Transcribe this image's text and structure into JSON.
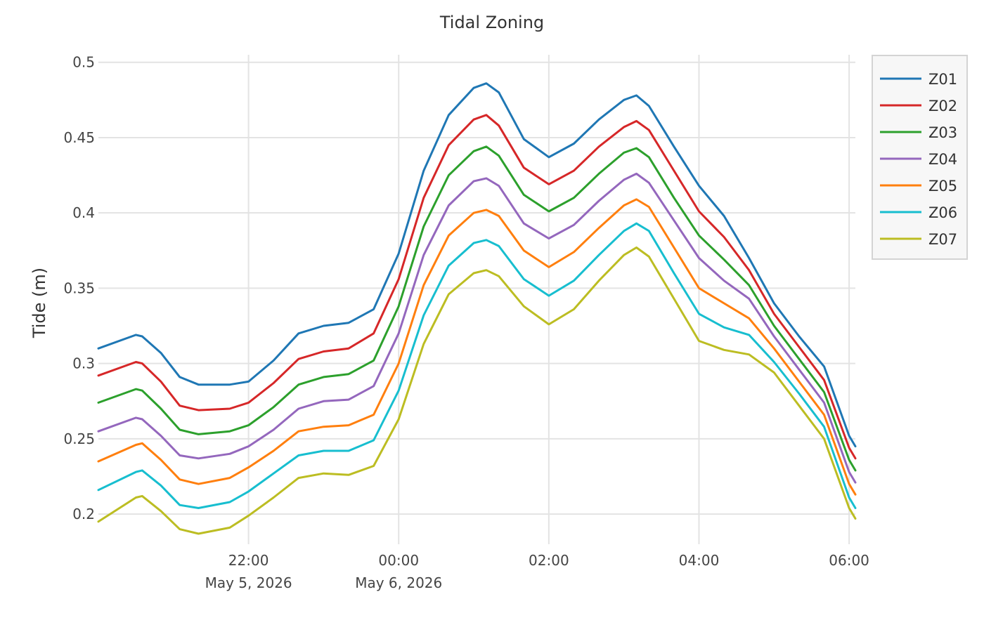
{
  "chart_data": {
    "type": "line",
    "title": "Tidal Zoning",
    "xlabel": "",
    "ylabel": "Tide (m)",
    "ylim": [
      0.18,
      0.505
    ],
    "xlim": [
      "2026-05-05T20:00",
      "2026-05-06T06:05"
    ],
    "y_ticks": [
      "0.2",
      "0.25",
      "0.3",
      "0.35",
      "0.4",
      "0.45",
      "0.5"
    ],
    "x_ticks": [
      {
        "time": "2026-05-05T22:00",
        "label": "22:00",
        "sublabel": "May 5, 2026"
      },
      {
        "time": "2026-05-06T00:00",
        "label": "00:00",
        "sublabel": "May 6, 2026"
      },
      {
        "time": "2026-05-06T02:00",
        "label": "02:00",
        "sublabel": ""
      },
      {
        "time": "2026-05-06T04:00",
        "label": "04:00",
        "sublabel": ""
      },
      {
        "time": "2026-05-06T06:00",
        "label": "06:00",
        "sublabel": ""
      }
    ],
    "grid": true,
    "legend_position": "top-right",
    "x": [
      "2026-05-05T20:00",
      "2026-05-05T20:30",
      "2026-05-05T20:35",
      "2026-05-05T20:50",
      "2026-05-05T21:05",
      "2026-05-05T21:20",
      "2026-05-05T21:45",
      "2026-05-05T22:00",
      "2026-05-05T22:20",
      "2026-05-05T22:40",
      "2026-05-05T23:00",
      "2026-05-05T23:20",
      "2026-05-05T23:40",
      "2026-05-06T00:00",
      "2026-05-06T00:20",
      "2026-05-06T00:40",
      "2026-05-06T01:00",
      "2026-05-06T01:10",
      "2026-05-06T01:20",
      "2026-05-06T01:40",
      "2026-05-06T02:00",
      "2026-05-06T02:20",
      "2026-05-06T02:40",
      "2026-05-06T03:00",
      "2026-05-06T03:10",
      "2026-05-06T03:20",
      "2026-05-06T03:40",
      "2026-05-06T04:00",
      "2026-05-06T04:20",
      "2026-05-06T04:40",
      "2026-05-06T05:00",
      "2026-05-06T05:20",
      "2026-05-06T05:40",
      "2026-05-06T06:00",
      "2026-05-06T06:05"
    ],
    "series": [
      {
        "name": "Z01",
        "color": "#1f77b4",
        "values": [
          0.31,
          0.319,
          0.318,
          0.307,
          0.291,
          0.286,
          0.286,
          0.288,
          0.302,
          0.32,
          0.325,
          0.327,
          0.336,
          0.373,
          0.428,
          0.465,
          0.483,
          0.486,
          0.48,
          0.449,
          0.437,
          0.446,
          0.462,
          0.475,
          0.478,
          0.471,
          0.444,
          0.418,
          0.398,
          0.37,
          0.34,
          0.318,
          0.298,
          0.252,
          0.245
        ]
      },
      {
        "name": "Z02",
        "color": "#d62728",
        "values": [
          0.292,
          0.301,
          0.3,
          0.288,
          0.272,
          0.269,
          0.27,
          0.274,
          0.287,
          0.303,
          0.308,
          0.31,
          0.32,
          0.356,
          0.41,
          0.445,
          0.462,
          0.465,
          0.458,
          0.43,
          0.419,
          0.428,
          0.444,
          0.457,
          0.461,
          0.455,
          0.428,
          0.401,
          0.384,
          0.362,
          0.333,
          0.311,
          0.289,
          0.244,
          0.237
        ]
      },
      {
        "name": "Z03",
        "color": "#2ca02c",
        "values": [
          0.274,
          0.283,
          0.282,
          0.27,
          0.256,
          0.253,
          0.255,
          0.259,
          0.271,
          0.286,
          0.291,
          0.293,
          0.302,
          0.338,
          0.391,
          0.425,
          0.441,
          0.444,
          0.438,
          0.412,
          0.401,
          0.41,
          0.426,
          0.44,
          0.443,
          0.437,
          0.41,
          0.385,
          0.369,
          0.352,
          0.325,
          0.303,
          0.281,
          0.236,
          0.229
        ]
      },
      {
        "name": "Z04",
        "color": "#9467bd",
        "values": [
          0.255,
          0.264,
          0.263,
          0.252,
          0.239,
          0.237,
          0.24,
          0.245,
          0.256,
          0.27,
          0.275,
          0.276,
          0.285,
          0.32,
          0.372,
          0.405,
          0.421,
          0.423,
          0.418,
          0.393,
          0.383,
          0.392,
          0.408,
          0.422,
          0.426,
          0.42,
          0.395,
          0.37,
          0.355,
          0.343,
          0.318,
          0.296,
          0.274,
          0.228,
          0.221
        ]
      },
      {
        "name": "Z05",
        "color": "#ff7f0e",
        "values": [
          0.235,
          0.246,
          0.247,
          0.236,
          0.223,
          0.22,
          0.224,
          0.231,
          0.242,
          0.255,
          0.258,
          0.259,
          0.266,
          0.3,
          0.352,
          0.385,
          0.4,
          0.402,
          0.398,
          0.375,
          0.364,
          0.374,
          0.39,
          0.405,
          0.409,
          0.404,
          0.377,
          0.35,
          0.34,
          0.33,
          0.31,
          0.288,
          0.266,
          0.22,
          0.213
        ]
      },
      {
        "name": "Z06",
        "color": "#17becf",
        "values": [
          0.216,
          0.228,
          0.229,
          0.219,
          0.206,
          0.204,
          0.208,
          0.215,
          0.227,
          0.239,
          0.242,
          0.242,
          0.249,
          0.282,
          0.332,
          0.365,
          0.38,
          0.382,
          0.378,
          0.356,
          0.345,
          0.355,
          0.372,
          0.388,
          0.393,
          0.388,
          0.36,
          0.333,
          0.324,
          0.319,
          0.301,
          0.28,
          0.258,
          0.211,
          0.204
        ]
      },
      {
        "name": "Z07",
        "color": "#bcbd22",
        "values": [
          0.195,
          0.211,
          0.212,
          0.202,
          0.19,
          0.187,
          0.191,
          0.199,
          0.211,
          0.224,
          0.227,
          0.226,
          0.232,
          0.263,
          0.313,
          0.346,
          0.36,
          0.362,
          0.358,
          0.338,
          0.326,
          0.336,
          0.355,
          0.372,
          0.377,
          0.371,
          0.343,
          0.315,
          0.309,
          0.306,
          0.294,
          0.272,
          0.25,
          0.204,
          0.197
        ]
      }
    ]
  }
}
